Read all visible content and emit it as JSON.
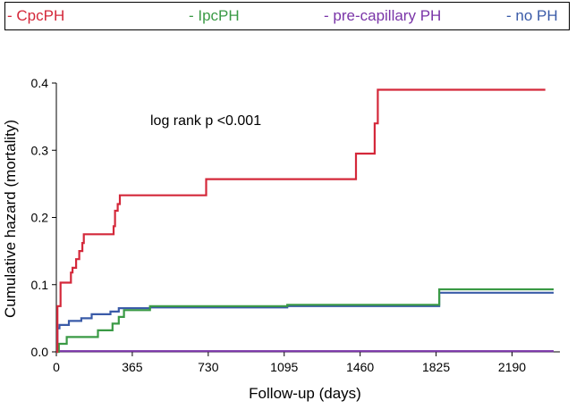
{
  "chart_data": {
    "type": "line",
    "step": true,
    "annotation": "log rank p <0.001",
    "xlabel": "Follow-up (days)",
    "ylabel": "Cumulative hazard (mortality)",
    "xlim": [
      0,
      2420
    ],
    "ylim": [
      0,
      0.4
    ],
    "xticks": [
      0,
      365,
      730,
      1095,
      1460,
      1825,
      2190
    ],
    "yticks": [
      0.0,
      0.1,
      0.2,
      0.3,
      0.4
    ],
    "ytick_labels": [
      "0.0",
      "0.1",
      "0.2",
      "0.3",
      "0.4"
    ],
    "legend_position": "top",
    "series": [
      {
        "name": "CpcPH",
        "legend_label": "- CpcPH",
        "color": "#d4283a",
        "points": [
          [
            0,
            0
          ],
          [
            5,
            0.068
          ],
          [
            20,
            0.103
          ],
          [
            70,
            0.118
          ],
          [
            78,
            0.125
          ],
          [
            95,
            0.138
          ],
          [
            110,
            0.15
          ],
          [
            125,
            0.162
          ],
          [
            132,
            0.175
          ],
          [
            275,
            0.187
          ],
          [
            282,
            0.21
          ],
          [
            295,
            0.22
          ],
          [
            305,
            0.233
          ],
          [
            720,
            0.257
          ],
          [
            1440,
            0.295
          ],
          [
            1530,
            0.34
          ],
          [
            1545,
            0.39
          ],
          [
            2350,
            0.39
          ]
        ]
      },
      {
        "name": "IpcPH",
        "legend_label": "- IpcPH",
        "color": "#3a9a45",
        "points": [
          [
            0,
            0
          ],
          [
            12,
            0.012
          ],
          [
            50,
            0.022
          ],
          [
            200,
            0.032
          ],
          [
            270,
            0.042
          ],
          [
            300,
            0.052
          ],
          [
            325,
            0.062
          ],
          [
            450,
            0.068
          ],
          [
            1110,
            0.07
          ],
          [
            1840,
            0.093
          ],
          [
            2390,
            0.093
          ]
        ]
      },
      {
        "name": "pre-capillary PH",
        "legend_label": "- pre-capillary PH",
        "color": "#7a35a8",
        "points": [
          [
            0,
            0.001
          ],
          [
            2390,
            0.001
          ]
        ]
      },
      {
        "name": "no PH",
        "legend_label": "- no PH",
        "color": "#3a5ba8",
        "points": [
          [
            0,
            0
          ],
          [
            5,
            0.035
          ],
          [
            15,
            0.04
          ],
          [
            60,
            0.046
          ],
          [
            120,
            0.05
          ],
          [
            170,
            0.056
          ],
          [
            260,
            0.06
          ],
          [
            300,
            0.065
          ],
          [
            450,
            0.066
          ],
          [
            1110,
            0.068
          ],
          [
            1840,
            0.088
          ],
          [
            2390,
            0.088
          ]
        ]
      }
    ]
  }
}
